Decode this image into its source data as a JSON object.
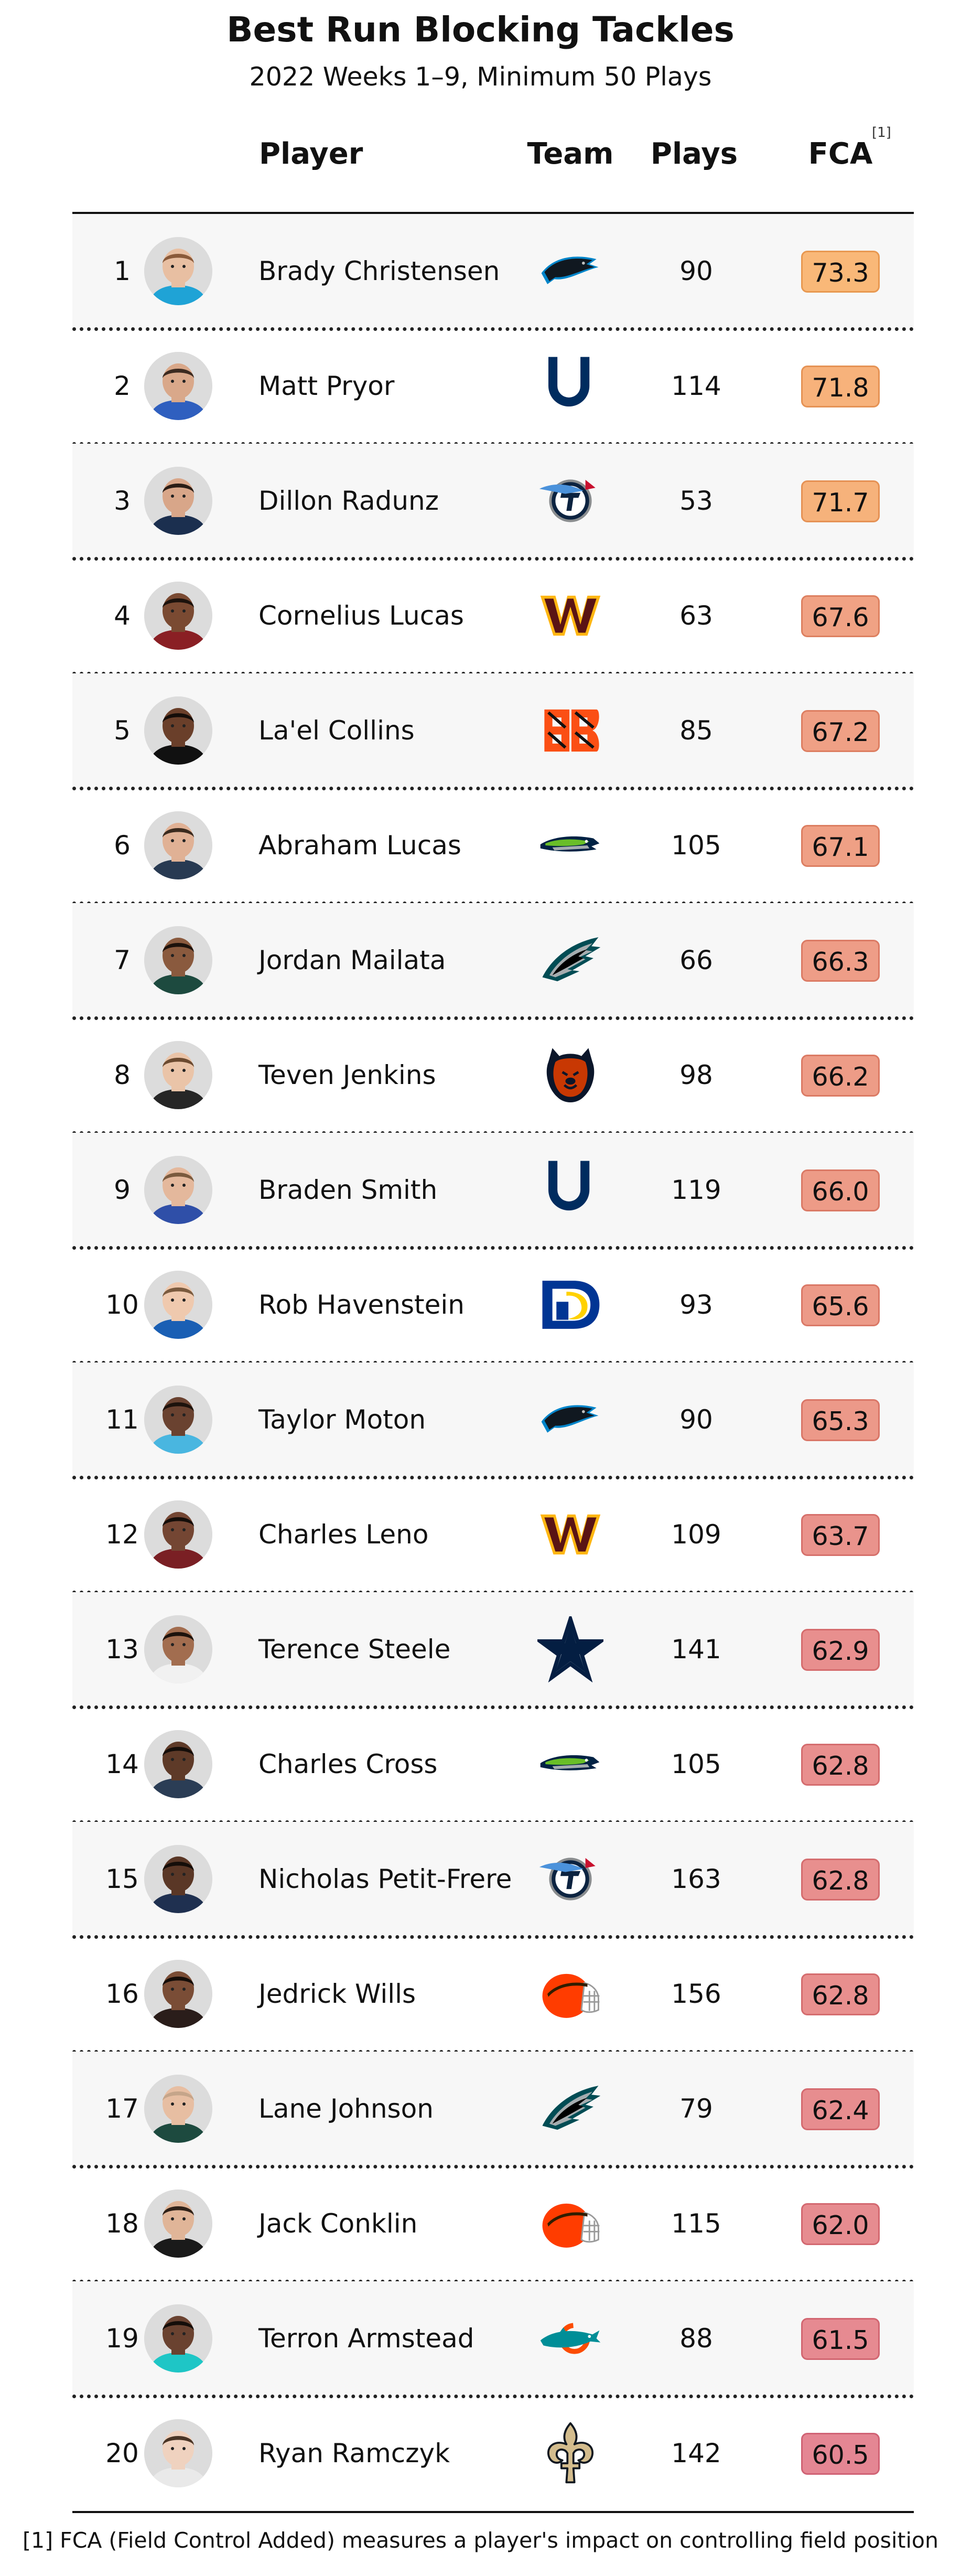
{
  "title": "Best Run Blocking Tackles",
  "subtitle": "2022 Weeks 1–9, Minimum 50 Plays",
  "columns": {
    "player": "Player",
    "team": "Team",
    "plays": "Plays",
    "fca": "FCA",
    "fca_mark": "[1]"
  },
  "footnote": "[1] FCA (Field Control Added) measures a player's impact on controlling field position",
  "colors": {
    "fca_high": "#f9b878",
    "fca_low": "#e48693",
    "row_shade": "#f7f7f7"
  },
  "chart_data": {
    "type": "table",
    "title": "Best Run Blocking Tackles",
    "subtitle": "2022 Weeks 1–9, Minimum 50 Plays",
    "columns": [
      "Player",
      "Team",
      "Plays",
      "FCA"
    ],
    "rows": [
      {
        "rank": "1",
        "name": "Brady Christensen",
        "team": "panthers-logo",
        "plays": "90",
        "fca": "73.3"
      },
      {
        "rank": "2",
        "name": "Matt Pryor",
        "team": "colts-logo",
        "plays": "114",
        "fca": "71.8"
      },
      {
        "rank": "3",
        "name": "Dillon Radunz",
        "team": "titans-logo",
        "plays": "53",
        "fca": "71.7"
      },
      {
        "rank": "4",
        "name": "Cornelius Lucas",
        "team": "commanders-logo",
        "plays": "63",
        "fca": "67.6"
      },
      {
        "rank": "5",
        "name": "La'el Collins",
        "team": "bengals-logo",
        "plays": "85",
        "fca": "67.2"
      },
      {
        "rank": "6",
        "name": "Abraham Lucas",
        "team": "seahawks-logo",
        "plays": "105",
        "fca": "67.1"
      },
      {
        "rank": "7",
        "name": "Jordan Mailata",
        "team": "eagles-logo",
        "plays": "66",
        "fca": "66.3"
      },
      {
        "rank": "8",
        "name": "Teven Jenkins",
        "team": "bears-logo",
        "plays": "98",
        "fca": "66.2"
      },
      {
        "rank": "9",
        "name": "Braden Smith",
        "team": "colts-logo",
        "plays": "119",
        "fca": "66.0"
      },
      {
        "rank": "10",
        "name": "Rob Havenstein",
        "team": "rams-logo",
        "plays": "93",
        "fca": "65.6"
      },
      {
        "rank": "11",
        "name": "Taylor Moton",
        "team": "panthers-logo",
        "plays": "90",
        "fca": "65.3"
      },
      {
        "rank": "12",
        "name": "Charles Leno",
        "team": "commanders-logo",
        "plays": "109",
        "fca": "63.7"
      },
      {
        "rank": "13",
        "name": "Terence Steele",
        "team": "cowboys-logo",
        "plays": "141",
        "fca": "62.9"
      },
      {
        "rank": "14",
        "name": "Charles Cross",
        "team": "seahawks-logo",
        "plays": "105",
        "fca": "62.8"
      },
      {
        "rank": "15",
        "name": "Nicholas Petit-Frere",
        "team": "titans-logo",
        "plays": "163",
        "fca": "62.8"
      },
      {
        "rank": "16",
        "name": "Jedrick Wills",
        "team": "browns-logo",
        "plays": "156",
        "fca": "62.8"
      },
      {
        "rank": "17",
        "name": "Lane Johnson",
        "team": "eagles-logo",
        "plays": "79",
        "fca": "62.4"
      },
      {
        "rank": "18",
        "name": "Jack Conklin",
        "team": "browns-logo",
        "plays": "115",
        "fca": "62.0"
      },
      {
        "rank": "19",
        "name": "Terron Armstead",
        "team": "dolphins-logo",
        "plays": "88",
        "fca": "61.5"
      },
      {
        "rank": "20",
        "name": "Ryan Ramczyk",
        "team": "saints-logo",
        "plays": "142",
        "fca": "60.5"
      }
    ]
  },
  "avatars": [
    {
      "skin": "#e8bfa2",
      "hair": "#8a5a3a",
      "jersey": "#1fa3d6"
    },
    {
      "skin": "#d9a88a",
      "hair": "#3b2a20",
      "jersey": "#2f5fbf"
    },
    {
      "skin": "#d8a689",
      "hair": "#2a1d16",
      "jersey": "#1b2f4f"
    },
    {
      "skin": "#7a4a32",
      "hair": "#1c120c",
      "jersey": "#8a1f24"
    },
    {
      "skin": "#6a3f2a",
      "hair": "#140d09",
      "jersey": "#111111"
    },
    {
      "skin": "#e0b195",
      "hair": "#3a2a1e",
      "jersey": "#283a52"
    },
    {
      "skin": "#8a5a3e",
      "hair": "#1c120c",
      "jersey": "#1d4a3f"
    },
    {
      "skin": "#eac4a8",
      "hair": "#6b4a30",
      "jersey": "#262626"
    },
    {
      "skin": "#e4b89c",
      "hair": "#7a5a3e",
      "jersey": "#2f4fa8"
    },
    {
      "skin": "#efc9ae",
      "hair": "#7a5a3e",
      "jersey": "#1a5fb4"
    },
    {
      "skin": "#6a4230",
      "hair": "#1c120c",
      "jersey": "#49b6e0"
    },
    {
      "skin": "#744633",
      "hair": "#140d09",
      "jersey": "#7a1f24"
    },
    {
      "skin": "#a26d4f",
      "hair": "#1c120c",
      "jersey": "#f1f1f1"
    },
    {
      "skin": "#5e3a28",
      "hair": "#140d09",
      "jersey": "#2b3d55"
    },
    {
      "skin": "#5a3726",
      "hair": "#140d09",
      "jersey": "#1f3050"
    },
    {
      "skin": "#7a4d36",
      "hair": "#140d09",
      "jersey": "#2a1d1a"
    },
    {
      "skin": "#e7bea2",
      "hair": "#c5a58a",
      "jersey": "#1d4a3f"
    },
    {
      "skin": "#e0b598",
      "hair": "#2f2118",
      "jersey": "#1a1a1a"
    },
    {
      "skin": "#6a4230",
      "hair": "#140d09",
      "jersey": "#1ec6c6"
    },
    {
      "skin": "#efd2bf",
      "hair": "#4a3526",
      "jersey": "#e9e9e9"
    }
  ]
}
